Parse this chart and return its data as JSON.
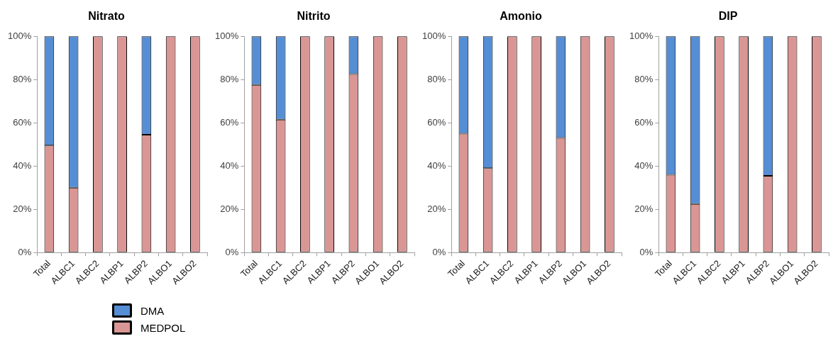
{
  "chart_data": [
    {
      "type": "bar",
      "title": "Nitrato",
      "stacked": true,
      "legend": "bottom",
      "grid": false,
      "categories": [
        "Total",
        "ALBC1",
        "ALBC2",
        "ALBP1",
        "ALBP2",
        "ALBO1",
        "ALBO2"
      ],
      "ylim": [
        0,
        100
      ],
      "yticks": [
        {
          "value": 0,
          "label": "0%"
        },
        {
          "value": 20,
          "label": "20%"
        },
        {
          "value": 40,
          "label": "40%"
        },
        {
          "value": 60,
          "label": "60%"
        },
        {
          "value": 80,
          "label": "80%"
        },
        {
          "value": 100,
          "label": "100%"
        }
      ],
      "series": [
        {
          "name": "MEDPOL",
          "color": "#d99694",
          "values": [
            49.5,
            30,
            100,
            100,
            54.5,
            100,
            100
          ]
        },
        {
          "name": "DMA",
          "color": "#558ed5",
          "values": [
            50.5,
            70,
            0,
            0,
            45.5,
            0,
            0
          ]
        }
      ]
    },
    {
      "type": "bar",
      "title": "Nitrito",
      "stacked": true,
      "grid": false,
      "categories": [
        "Total",
        "ALBC1",
        "ALBC2",
        "ALBP1",
        "ALBP2",
        "ALBO1",
        "ALBO2"
      ],
      "ylim": [
        0,
        100
      ],
      "yticks": [
        {
          "value": 0,
          "label": "0%"
        },
        {
          "value": 20,
          "label": "20%"
        },
        {
          "value": 40,
          "label": "40%"
        },
        {
          "value": 60,
          "label": "60%"
        },
        {
          "value": 80,
          "label": "80%"
        },
        {
          "value": 100,
          "label": "100%"
        }
      ],
      "series": [
        {
          "color": "#d99694",
          "values": [
            77.5,
            61.5,
            100,
            100,
            82.5,
            100,
            100
          ]
        },
        {
          "color": "#558ed5",
          "values": [
            22.5,
            38.5,
            0,
            0,
            17.5,
            0,
            0
          ]
        }
      ]
    },
    {
      "type": "bar",
      "title": "Amonio",
      "stacked": true,
      "grid": false,
      "categories": [
        "Total",
        "ALBC1",
        "ALBC2",
        "ALBP1",
        "ALBP2",
        "ALBO1",
        "ALBO2"
      ],
      "ylim": [
        0,
        100
      ],
      "yticks": [
        {
          "value": 0,
          "label": "0%"
        },
        {
          "value": 20,
          "label": "20%"
        },
        {
          "value": 40,
          "label": "40%"
        },
        {
          "value": 60,
          "label": "60%"
        },
        {
          "value": 80,
          "label": "80%"
        },
        {
          "value": 100,
          "label": "100%"
        }
      ],
      "series": [
        {
          "color": "#d99694",
          "values": [
            55,
            39,
            100,
            100,
            53,
            100,
            100
          ]
        },
        {
          "color": "#558ed5",
          "values": [
            45,
            61,
            0,
            0,
            47,
            0,
            0
          ]
        }
      ]
    },
    {
      "type": "bar",
      "title": "DIP",
      "stacked": true,
      "grid": false,
      "categories": [
        "Total",
        "ALBC1",
        "ALBC2",
        "ALBP1",
        "ALBP2",
        "ALBO1",
        "ALBO2"
      ],
      "ylim": [
        0,
        100
      ],
      "yticks": [
        {
          "value": 0,
          "label": "0%"
        },
        {
          "value": 20,
          "label": "20%"
        },
        {
          "value": 40,
          "label": "40%"
        },
        {
          "value": 60,
          "label": "60%"
        },
        {
          "value": 80,
          "label": "80%"
        },
        {
          "value": 100,
          "label": "100%"
        }
      ],
      "series": [
        {
          "color": "#d99694",
          "values": [
            36,
            22.5,
            100,
            100,
            35.5,
            100,
            100
          ]
        },
        {
          "color": "#558ed5",
          "values": [
            64,
            77.5,
            0,
            0,
            64.5,
            0,
            0
          ]
        }
      ]
    }
  ]
}
